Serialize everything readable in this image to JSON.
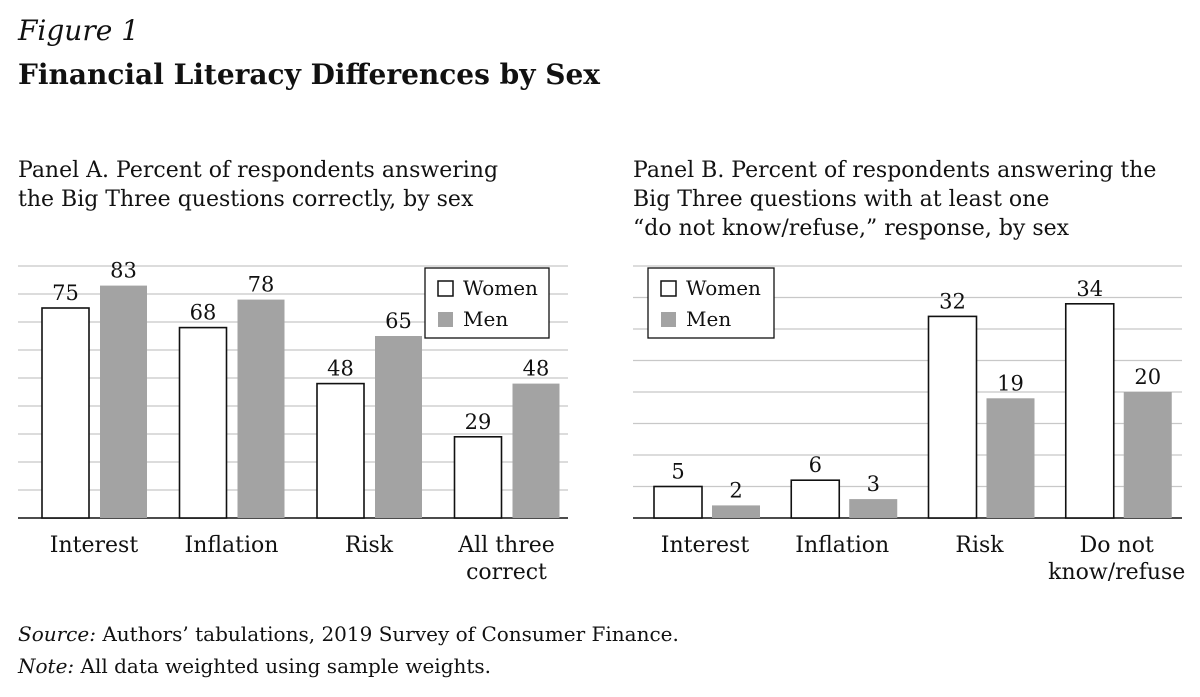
{
  "figure": {
    "label": "Figure 1",
    "title": "Financial Literacy Differences by Sex"
  },
  "notes": {
    "source_label": "Source:",
    "source_text": " Authors’ tabulations, 2019 Survey of Consumer Finance.",
    "note_label": "Note:",
    "note_text": " All data weighted using sample weights."
  },
  "colors": {
    "women_fill": "#ffffff",
    "men_fill": "#a3a3a3",
    "bar_stroke": "#111111",
    "grid": "#c8c8c8",
    "axis": "#111111"
  },
  "chart_data": [
    {
      "type": "bar",
      "title_lines": [
        "Panel A. Percent of respondents answering",
        "the Big Three questions correctly, by sex"
      ],
      "categories": [
        "Interest",
        "Inflation",
        "Risk",
        "All three correct"
      ],
      "category_label_lines": [
        [
          "Interest"
        ],
        [
          "Inflation"
        ],
        [
          "Risk"
        ],
        [
          "All three",
          "correct"
        ]
      ],
      "series": [
        {
          "name": "Women",
          "values": [
            75,
            68,
            48,
            29
          ]
        },
        {
          "name": "Men",
          "values": [
            83,
            78,
            65,
            48
          ]
        }
      ],
      "ylim": [
        0,
        90
      ],
      "grid": true,
      "legend_position": "top-right",
      "data_labels": true
    },
    {
      "type": "bar",
      "title_lines": [
        "Panel B. Percent of respondents answering the",
        "Big Three questions with at least one",
        "“do not know/refuse,” response, by sex"
      ],
      "categories": [
        "Interest",
        "Inflation",
        "Risk",
        "Do not know/refuse"
      ],
      "category_label_lines": [
        [
          "Interest"
        ],
        [
          "Inflation"
        ],
        [
          "Risk"
        ],
        [
          "Do not",
          "know/refuse"
        ]
      ],
      "series": [
        {
          "name": "Women",
          "values": [
            5,
            6,
            32,
            34
          ]
        },
        {
          "name": "Men",
          "values": [
            2,
            3,
            19,
            20
          ]
        }
      ],
      "ylim": [
        0,
        40
      ],
      "grid": true,
      "legend_position": "top-left",
      "data_labels": true
    }
  ]
}
